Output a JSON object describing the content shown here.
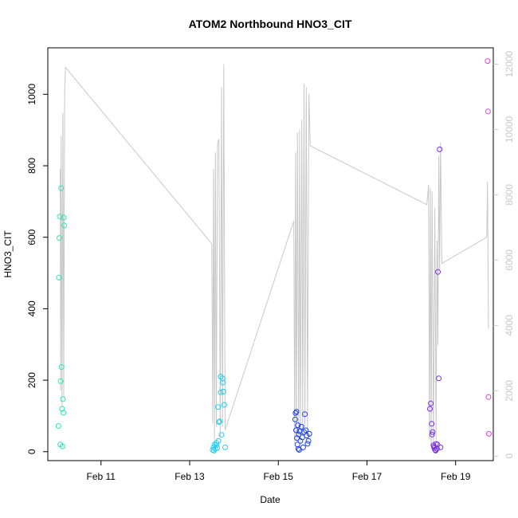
{
  "chart_data": {
    "type": "scatter",
    "title": "ATOM2 Northbound HNO3_CIT",
    "xlabel": "Date",
    "ylabel": "HNO3_CIT",
    "y2label": "",
    "x_ticks": [
      "Feb 11",
      "Feb 13",
      "Feb 15",
      "Feb 17",
      "Feb 19"
    ],
    "y_ticks": [
      "0",
      "200",
      "400",
      "600",
      "800",
      "1000"
    ],
    "y2_ticks": [
      "0",
      "2000",
      "4000",
      "6000",
      "8000",
      "10000",
      "12000"
    ],
    "xlim": [
      9.8,
      19.85
    ],
    "ylim": [
      -25,
      1130
    ],
    "y2lim": [
      -140,
      12500
    ],
    "grid": false,
    "line_series": {
      "name": "",
      "color": "#c8c8c8",
      "axis": "right",
      "points": [
        [
          10.08,
          8800
        ],
        [
          10.09,
          2000
        ],
        [
          10.1,
          9800
        ],
        [
          10.12,
          1500
        ],
        [
          10.14,
          10500
        ],
        [
          10.16,
          1800
        ],
        [
          10.18,
          11100
        ],
        [
          10.2,
          11900
        ],
        [
          13.5,
          6500
        ],
        [
          13.52,
          1000
        ],
        [
          13.54,
          8800
        ],
        [
          13.56,
          500
        ],
        [
          13.58,
          9300
        ],
        [
          13.6,
          900
        ],
        [
          13.63,
          9600
        ],
        [
          13.66,
          9700
        ],
        [
          13.69,
          600
        ],
        [
          13.72,
          11300
        ],
        [
          13.74,
          900
        ],
        [
          13.77,
          12000
        ],
        [
          13.8,
          800
        ],
        [
          15.35,
          7200
        ],
        [
          15.37,
          400
        ],
        [
          15.39,
          9300
        ],
        [
          15.41,
          500
        ],
        [
          15.43,
          9900
        ],
        [
          15.46,
          600
        ],
        [
          15.48,
          10000
        ],
        [
          15.5,
          400
        ],
        [
          15.53,
          10300
        ],
        [
          15.55,
          700
        ],
        [
          15.58,
          11400
        ],
        [
          15.6,
          900
        ],
        [
          15.63,
          11300
        ],
        [
          15.66,
          800
        ],
        [
          15.69,
          11100
        ],
        [
          15.72,
          9500
        ],
        [
          18.35,
          7700
        ],
        [
          18.39,
          8300
        ],
        [
          18.41,
          500
        ],
        [
          18.43,
          8200
        ],
        [
          18.45,
          300
        ],
        [
          18.47,
          8100
        ],
        [
          18.5,
          400
        ],
        [
          18.53,
          7600
        ],
        [
          18.56,
          500
        ],
        [
          18.58,
          6600
        ],
        [
          18.6,
          3400
        ],
        [
          18.62,
          9200
        ],
        [
          18.64,
          5700
        ],
        [
          18.66,
          9600
        ],
        [
          18.69,
          5900
        ],
        [
          19.7,
          6700
        ],
        [
          19.72,
          8400
        ],
        [
          19.74,
          3900
        ]
      ]
    },
    "scatter_series": [
      {
        "color": "#2ee8b0",
        "x": [
          10.04,
          10.05,
          10.06,
          10.07,
          10.08,
          10.09,
          10.1,
          10.11,
          10.12,
          10.13,
          10.14,
          10.15,
          10.16,
          10.17
        ],
        "y": [
          72,
          487,
          598,
          658,
          20,
          197,
          737,
          237,
          120,
          15,
          147,
          109,
          655,
          633
        ]
      },
      {
        "color": "#22ccf0",
        "x": [
          13.52,
          13.54,
          13.56,
          13.58,
          13.6,
          13.62,
          13.64,
          13.66,
          13.68,
          13.7,
          13.72,
          13.74,
          13.76,
          13.78,
          13.8,
          13.55,
          13.6,
          13.65,
          13.7,
          13.75
        ],
        "y": [
          5,
          12,
          20,
          8,
          25,
          10,
          125,
          83,
          85,
          210,
          47,
          205,
          168,
          131,
          12,
          3,
          18,
          30,
          166,
          193
        ]
      },
      {
        "color": "#1a3ff0",
        "x": [
          15.38,
          15.39,
          15.4,
          15.41,
          15.42,
          15.43,
          15.44,
          15.45,
          15.46,
          15.47,
          15.48,
          15.5,
          15.52,
          15.54,
          15.56,
          15.58,
          15.6,
          15.62,
          15.64,
          15.66,
          15.68,
          15.7
        ],
        "y": [
          90,
          108,
          60,
          112,
          38,
          20,
          74,
          8,
          48,
          5,
          57,
          30,
          70,
          40,
          12,
          55,
          105,
          60,
          45,
          22,
          30,
          50
        ]
      },
      {
        "color": "#7a2be8",
        "x": [
          18.42,
          18.44,
          18.46,
          18.48,
          18.5,
          18.52,
          18.54,
          18.56,
          18.58,
          18.6,
          18.62,
          18.64,
          18.66,
          18.47,
          18.51,
          18.55,
          18.59
        ],
        "y": [
          120,
          135,
          78,
          55,
          18,
          10,
          5,
          22,
          8,
          503,
          205,
          846,
          12,
          48,
          14,
          3,
          20
        ]
      },
      {
        "color": "#e83de0",
        "x": [
          19.72,
          19.73,
          19.74,
          19.75
        ],
        "y": [
          1093,
          952,
          153,
          50
        ]
      }
    ]
  }
}
